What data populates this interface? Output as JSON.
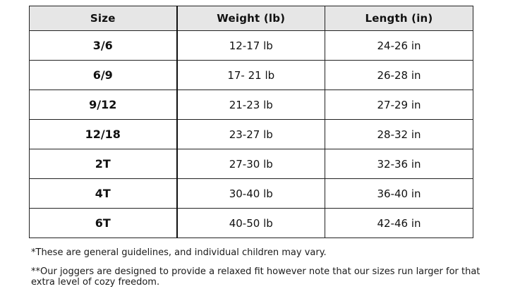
{
  "table": {
    "headers": [
      "Size",
      "Weight (lb)",
      "Length (in)"
    ],
    "rows": [
      [
        "3/6",
        "12-17 lb",
        "24-26 in"
      ],
      [
        "6/9",
        "17- 21 lb",
        "26-28 in"
      ],
      [
        "9/12",
        "21-23 lb",
        "27-29 in"
      ],
      [
        "12/18",
        "23-27 lb",
        "28-32 in"
      ],
      [
        "2T",
        "27-30 lb",
        "32-36 in"
      ],
      [
        "4T",
        "30-40 lb",
        "36-40 in"
      ],
      [
        "6T",
        "40-50 lb",
        "42-46 in"
      ]
    ]
  },
  "notes": [
    "*These are general guidelines, and  individual children may vary.",
    "**Our joggers are designed to provide a relaxed fit however note that our sizes run larger for that extra level of cozy freedom."
  ]
}
